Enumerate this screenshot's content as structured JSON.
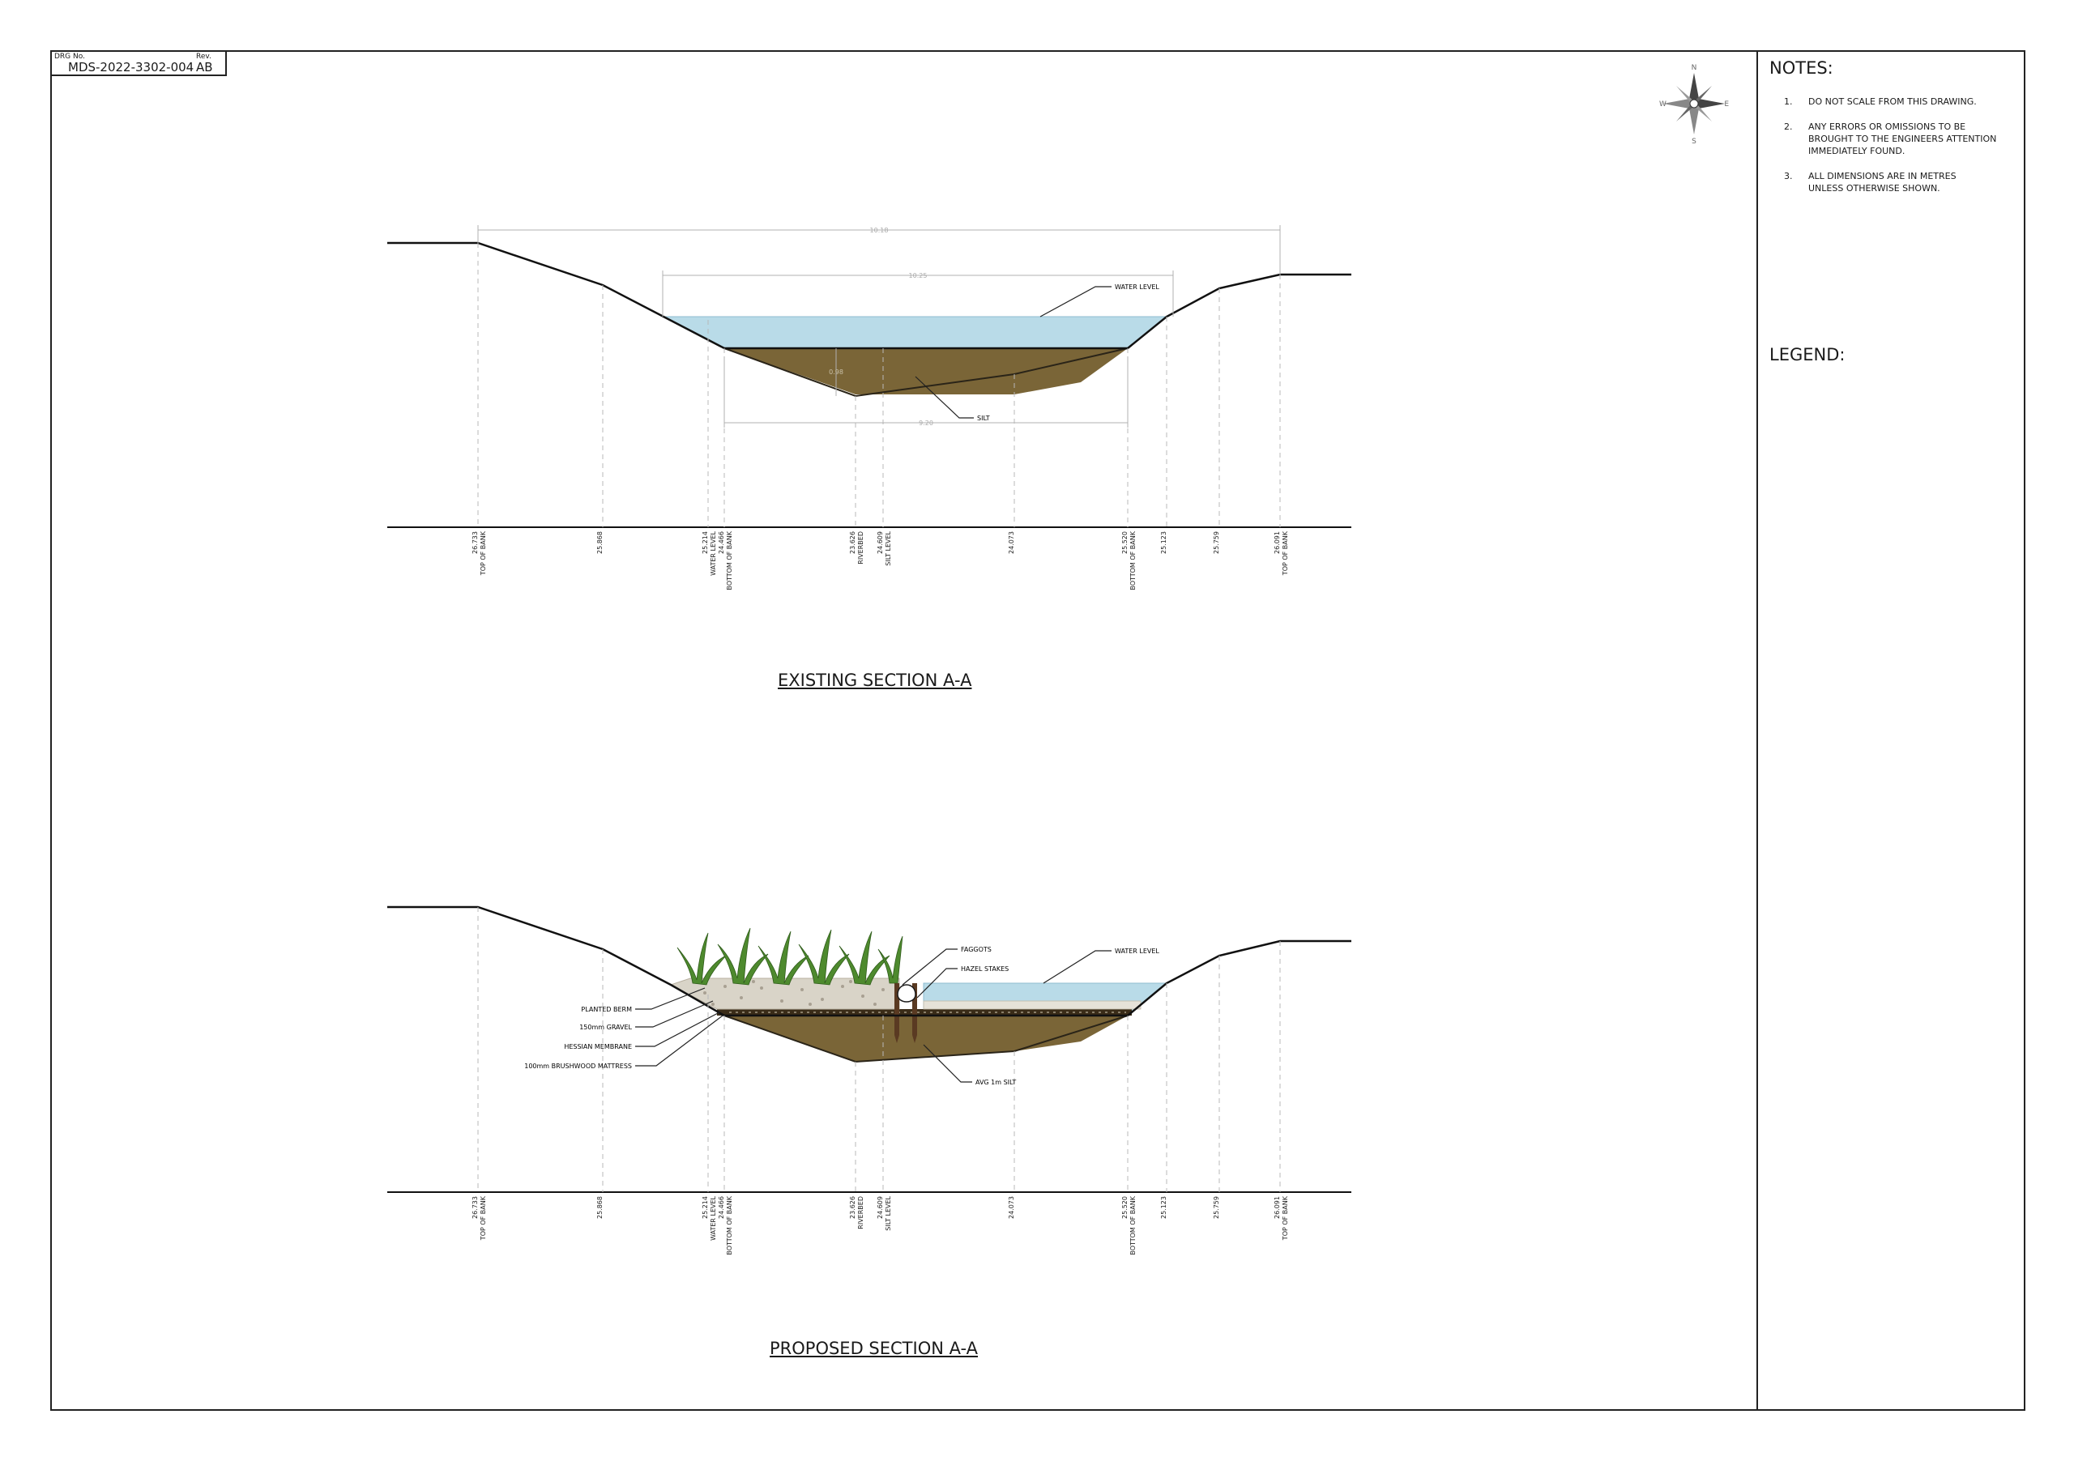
{
  "drawing": {
    "drg_no_label": "DRG No.",
    "drg_no": "MDS-2022-3302-004",
    "rev_label": "Rev.",
    "rev": "AB"
  },
  "compass": {
    "n": "N",
    "s": "S",
    "e": "E",
    "w": "W"
  },
  "notes": {
    "title": "NOTES:",
    "items": [
      {
        "num": "1.",
        "lines": [
          "DO NOT SCALE FROM THIS DRAWING."
        ]
      },
      {
        "num": "2.",
        "lines": [
          "ANY ERRORS OR OMISSIONS TO BE",
          "BROUGHT TO THE ENGINEERS ATTENTION",
          "IMMEDIATELY FOUND."
        ]
      },
      {
        "num": "3.",
        "lines": [
          "ALL DIMENSIONS ARE IN METRES",
          "UNLESS OTHERWISE SHOWN."
        ]
      }
    ]
  },
  "legend": {
    "title": "LEGEND:"
  },
  "stations": [
    {
      "value": "26.733",
      "label": "TOP OF BANK"
    },
    {
      "value": "25.868",
      "label": ""
    },
    {
      "value": "25.214",
      "label": "WATER LEVEL"
    },
    {
      "value": "24.466",
      "label": "BOTTOM OF BANK"
    },
    {
      "value": "23.626",
      "label": "RIVERBED"
    },
    {
      "value": "24.609",
      "label": "SILT LEVEL"
    },
    {
      "value": "24.073",
      "label": ""
    },
    {
      "value": "25.520",
      "label": "BOTTOM OF BANK"
    },
    {
      "value": "25.123",
      "label": ""
    },
    {
      "value": "25.759",
      "label": ""
    },
    {
      "value": "26.091",
      "label": "TOP OF BANK"
    }
  ],
  "existing": {
    "title": "EXISTING SECTION A-A",
    "dims": {
      "overall": "10.18",
      "water": "10.25",
      "silt_depth": "0.98",
      "silt_width": "9.20"
    },
    "callouts": {
      "water_level": "WATER LEVEL",
      "silt": "SILT"
    }
  },
  "proposed": {
    "title": "PROPOSED SECTION A-A",
    "callouts": {
      "faggots": "FAGGOTS",
      "hazel_stakes": "HAZEL STAKES",
      "water_level": "WATER LEVEL",
      "planted_berm": "PLANTED BERM",
      "gravel": "150mm GRAVEL",
      "hessian": "HESSIAN MEMBRANE",
      "brushwood": "100mm BRUSHWOOD MATTRESS",
      "avg_silt": "AVG 1m SILT"
    }
  },
  "colors": {
    "water": "#b9dbe8",
    "silt": "#7a6537",
    "gravel": "#d9d4c8",
    "grass": "#4e8a2e",
    "stake": "#5a3a22"
  }
}
